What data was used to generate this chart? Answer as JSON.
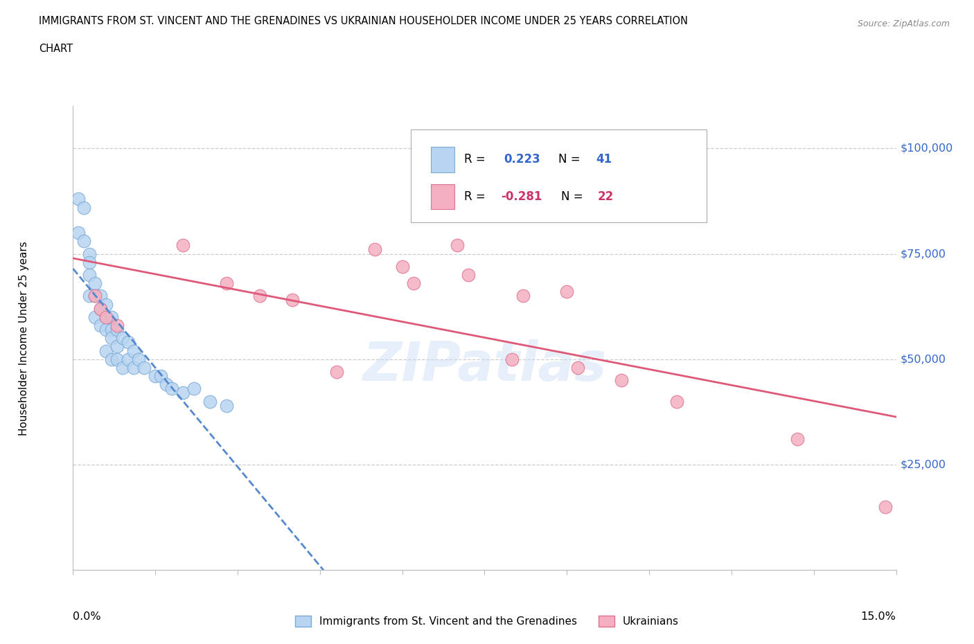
{
  "title_line1": "IMMIGRANTS FROM ST. VINCENT AND THE GRENADINES VS UKRAINIAN HOUSEHOLDER INCOME UNDER 25 YEARS CORRELATION",
  "title_line2": "CHART",
  "source": "Source: ZipAtlas.com",
  "ylabel": "Householder Income Under 25 years",
  "xmin": 0.0,
  "xmax": 0.15,
  "ymin": 0,
  "ymax": 110000,
  "yticks": [
    0,
    25000,
    50000,
    75000,
    100000
  ],
  "ytick_labels": [
    "",
    "$25,000",
    "$50,000",
    "$75,000",
    "$100,000"
  ],
  "xticks": [
    0.0,
    0.015,
    0.03,
    0.045,
    0.06,
    0.075,
    0.09,
    0.105,
    0.12,
    0.135,
    0.15
  ],
  "r_blue": "0.223",
  "n_blue": "41",
  "r_pink": "-0.281",
  "n_pink": "22",
  "blue_fill": "#B8D4F0",
  "pink_fill": "#F4B0C0",
  "blue_edge": "#7AAAD8",
  "pink_edge": "#E07090",
  "blue_line": "#5588CC",
  "pink_line": "#E05878",
  "legend_label_blue": "Immigrants from St. Vincent and the Grenadines",
  "legend_label_pink": "Ukrainians",
  "watermark": "ZIPatlas",
  "blue_x": [
    0.001,
    0.001,
    0.002,
    0.002,
    0.003,
    0.003,
    0.003,
    0.003,
    0.004,
    0.004,
    0.004,
    0.005,
    0.005,
    0.005,
    0.006,
    0.006,
    0.006,
    0.006,
    0.007,
    0.007,
    0.007,
    0.007,
    0.008,
    0.008,
    0.008,
    0.009,
    0.009,
    0.01,
    0.01,
    0.011,
    0.011,
    0.012,
    0.013,
    0.015,
    0.016,
    0.017,
    0.018,
    0.02,
    0.022,
    0.025,
    0.028
  ],
  "blue_y": [
    88000,
    80000,
    86000,
    78000,
    75000,
    73000,
    70000,
    65000,
    68000,
    65000,
    60000,
    65000,
    62000,
    58000,
    63000,
    60000,
    57000,
    52000,
    60000,
    57000,
    55000,
    50000,
    57000,
    53000,
    50000,
    55000,
    48000,
    54000,
    50000,
    52000,
    48000,
    50000,
    48000,
    46000,
    46000,
    44000,
    43000,
    42000,
    43000,
    40000,
    39000
  ],
  "pink_x": [
    0.004,
    0.005,
    0.006,
    0.008,
    0.02,
    0.028,
    0.034,
    0.04,
    0.048,
    0.055,
    0.06,
    0.062,
    0.07,
    0.072,
    0.08,
    0.082,
    0.09,
    0.092,
    0.1,
    0.11,
    0.132,
    0.148
  ],
  "pink_y": [
    65000,
    62000,
    60000,
    58000,
    77000,
    68000,
    65000,
    64000,
    47000,
    76000,
    72000,
    68000,
    77000,
    70000,
    50000,
    65000,
    66000,
    48000,
    45000,
    40000,
    31000,
    15000
  ]
}
